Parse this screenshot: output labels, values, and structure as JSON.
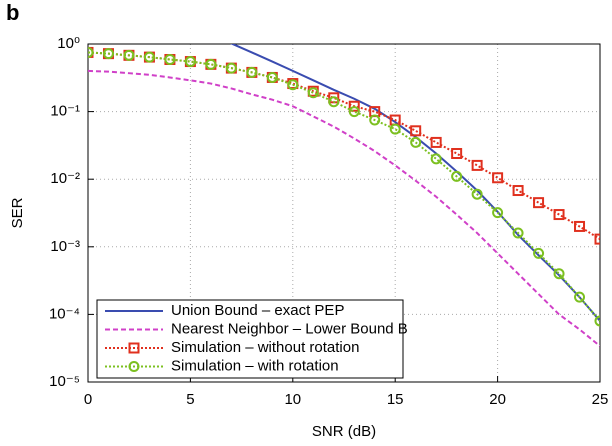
{
  "chart_data": {
    "type": "line",
    "panel_label": "b",
    "xlabel": "SNR (dB)",
    "ylabel": "SER",
    "x": [
      0,
      1,
      2,
      3,
      4,
      5,
      6,
      7,
      8,
      9,
      10,
      11,
      12,
      13,
      14,
      15,
      16,
      17,
      18,
      19,
      20,
      21,
      22,
      23,
      24,
      25
    ],
    "xlim": [
      0,
      25
    ],
    "xticks": [
      0,
      5,
      10,
      15,
      20,
      25
    ],
    "ylim": [
      1e-05,
      1
    ],
    "yscale": "log",
    "yticks": [
      {
        "value": 1,
        "label": "10⁰"
      },
      {
        "value": 0.1,
        "label": "10⁻¹"
      },
      {
        "value": 0.01,
        "label": "10⁻²"
      },
      {
        "value": 0.001,
        "label": "10⁻³"
      },
      {
        "value": 0.0001,
        "label": "10⁻⁴"
      },
      {
        "value": 1e-05,
        "label": "10⁻⁵"
      }
    ],
    "grid": true,
    "legend": "lower left",
    "series": [
      {
        "name": "Union Bound – exact PEP",
        "color": "#3a4cb0",
        "linestyle": "solid",
        "marker": "none",
        "values": [
          null,
          null,
          null,
          null,
          null,
          null,
          1.4,
          1.02,
          0.75,
          0.55,
          0.4,
          0.29,
          0.21,
          0.155,
          0.11,
          0.07,
          0.042,
          0.024,
          0.013,
          0.0068,
          0.0033,
          0.0015,
          0.00075,
          0.00038,
          0.00018,
          8e-05
        ]
      },
      {
        "name": "Nearest Neighbor – Lower Bound B",
        "color": "#d040c8",
        "linestyle": "dashed",
        "marker": "none",
        "values": [
          0.4,
          0.39,
          0.37,
          0.35,
          0.32,
          0.29,
          0.26,
          0.22,
          0.18,
          0.15,
          0.12,
          0.085,
          0.06,
          0.04,
          0.026,
          0.016,
          0.0095,
          0.0055,
          0.003,
          0.0016,
          0.0008,
          0.0004,
          0.0002,
          0.0001,
          6e-05,
          3.4e-05
        ]
      },
      {
        "name": "Simulation – without rotation",
        "color": "#e0301e",
        "linestyle": "dotted",
        "marker": "square",
        "values": [
          0.75,
          0.72,
          0.68,
          0.64,
          0.59,
          0.55,
          0.5,
          0.44,
          0.38,
          0.32,
          0.26,
          0.2,
          0.16,
          0.12,
          0.1,
          0.075,
          0.052,
          0.035,
          0.024,
          0.016,
          0.0105,
          0.0068,
          0.0045,
          0.003,
          0.002,
          0.0013
        ]
      },
      {
        "name": "Simulation – with rotation",
        "color": "#7cc020",
        "linestyle": "dotted",
        "marker": "circle",
        "values": [
          0.75,
          0.72,
          0.68,
          0.64,
          0.59,
          0.55,
          0.5,
          0.44,
          0.38,
          0.32,
          0.25,
          0.19,
          0.14,
          0.1,
          0.075,
          0.055,
          0.035,
          0.02,
          0.011,
          0.006,
          0.0032,
          0.0016,
          0.0008,
          0.0004,
          0.00018,
          8e-05
        ]
      }
    ]
  }
}
